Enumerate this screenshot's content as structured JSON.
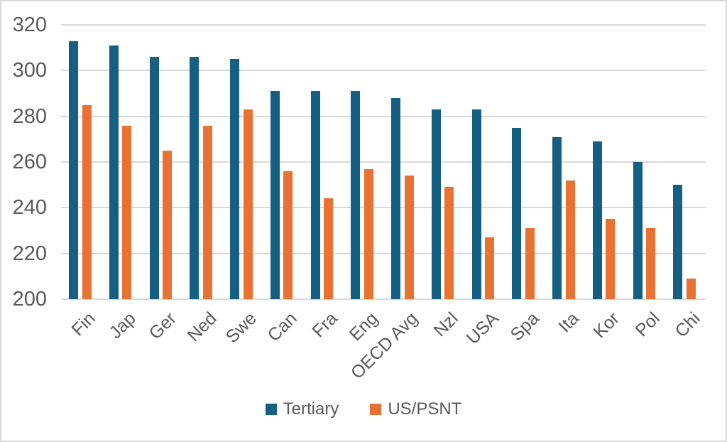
{
  "chart_data": {
    "type": "bar",
    "categories": [
      "Fin",
      "Jap",
      "Ger",
      "Ned",
      "Swe",
      "Can",
      "Fra",
      "Eng",
      "OECD Avg",
      "Nzl",
      "USA",
      "Spa",
      "Ita",
      "Kor",
      "Pol",
      "Chi"
    ],
    "series": [
      {
        "name": "Tertiary",
        "color": "#156082",
        "values": [
          313,
          311,
          306,
          306,
          305,
          291,
          291,
          291,
          288,
          283,
          283,
          275,
          271,
          269,
          260,
          250
        ]
      },
      {
        "name": "US/PSNT",
        "color": "#E97132",
        "values": [
          285,
          276,
          265,
          276,
          283,
          256,
          244,
          257,
          254,
          249,
          227,
          231,
          252,
          235,
          231,
          209
        ]
      }
    ],
    "title": "",
    "xlabel": "",
    "ylabel": "",
    "ylim": [
      200,
      320
    ],
    "yticks": [
      320,
      300,
      280,
      260,
      240,
      220,
      200
    ],
    "grid": true,
    "legend_position": "bottom"
  },
  "colors": {
    "grid": "#d9d9d9",
    "axis_text": "#595959",
    "background": "#ffffff",
    "border": "#d9d9d9"
  }
}
